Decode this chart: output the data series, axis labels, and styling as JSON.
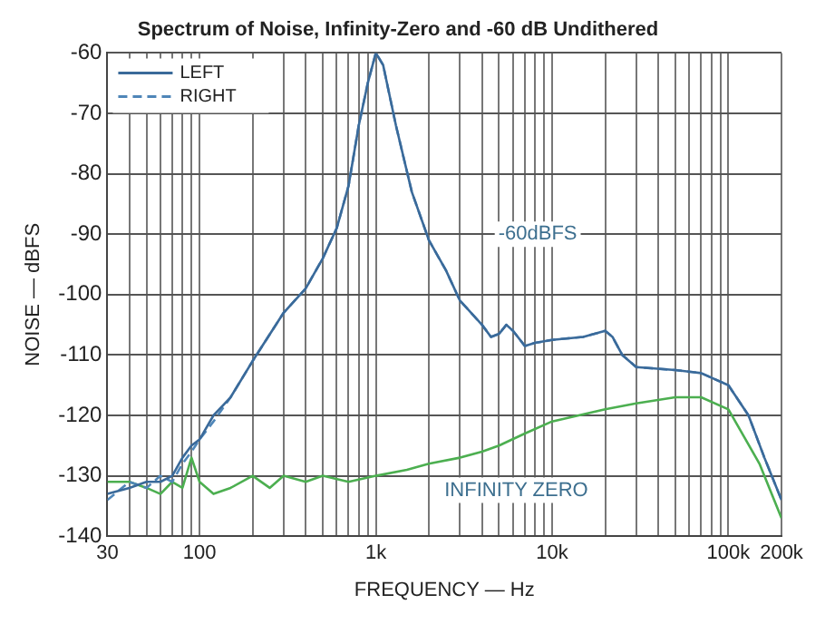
{
  "chart_data": {
    "type": "line",
    "title": "Spectrum of Noise, Infinity-Zero and -60 dB Undithered",
    "xlabel": "FREQUENCY — Hz",
    "ylabel": "NOISE — dBFS",
    "x": [
      30,
      40,
      50,
      60,
      70,
      80,
      90,
      100,
      120,
      150,
      200,
      300,
      400,
      500,
      600,
      700,
      800,
      900,
      1000,
      1100,
      1300,
      1600,
      2000,
      2500,
      3000,
      4000,
      4500,
      5000,
      5500,
      6000,
      7000,
      8000,
      10000,
      15000,
      20000,
      22000,
      25000,
      30000,
      50000,
      70000,
      100000,
      130000,
      160000,
      200000
    ],
    "series": [
      {
        "name": "LEFT",
        "color": "#3a6a9a",
        "line_style": "solid",
        "values": [
          -133,
          -132,
          -131,
          -131,
          -130,
          -127,
          -125,
          -124,
          -120,
          -117,
          -111,
          -103,
          -99,
          -94,
          -89,
          -82,
          -72,
          -65,
          -60,
          -62,
          -72,
          -83,
          -91,
          -96,
          -101,
          -105,
          -107,
          -106.5,
          -105,
          -106,
          -108.5,
          -108,
          -107.5,
          -107,
          -106,
          -107,
          -110,
          -112,
          -112.5,
          -113,
          -115,
          -120,
          -127,
          -134
        ]
      },
      {
        "name": "RIGHT",
        "color": "#4f86b8",
        "line_style": "dashed",
        "values": [
          -134,
          -131,
          -132,
          -130,
          -131,
          -128,
          -126,
          -124,
          -121,
          -117,
          -111,
          -103,
          -99,
          -94,
          -89,
          -82,
          -72,
          -65,
          -60,
          -62,
          -72,
          -83,
          -91,
          -96,
          -101,
          -105,
          -107,
          -106.5,
          -105,
          -106,
          -108.5,
          -108,
          -107.5,
          -107,
          -106,
          -107,
          -110,
          -112,
          -112.5,
          -113,
          -115,
          -120,
          -127,
          -134
        ]
      },
      {
        "color": "#4caf50",
        "line_style": "solid",
        "x": [
          30,
          40,
          50,
          60,
          70,
          80,
          90,
          100,
          120,
          150,
          200,
          250,
          300,
          400,
          500,
          700,
          1000,
          1500,
          2000,
          3000,
          4000,
          5000,
          7000,
          10000,
          20000,
          30000,
          50000,
          70000,
          100000,
          150000,
          200000
        ],
        "values": [
          -131,
          -131,
          -132,
          -133,
          -131,
          -132,
          -127,
          -131,
          -133,
          -132,
          -130,
          -132,
          -130,
          -131,
          -130,
          -131,
          -130,
          -129,
          -128,
          -127,
          -126,
          -125,
          -123,
          -121,
          -119,
          -118,
          -117,
          -117,
          -119,
          -128,
          -137
        ]
      }
    ],
    "annotations": [
      "-60dBFS",
      "INFINITY ZERO"
    ],
    "log": "x",
    "xlim": [
      30,
      200000
    ],
    "xticks": [
      30,
      {
        "value": 40,
        "label": null
      },
      {
        "value": 50,
        "label": null
      },
      {
        "value": 60,
        "label": null
      },
      {
        "value": 70,
        "label": null
      },
      {
        "value": 80,
        "label": null
      },
      {
        "value": 90,
        "label": null
      },
      100,
      {
        "value": 200,
        "label": null
      },
      {
        "value": 300,
        "label": null
      },
      {
        "value": 400,
        "label": null
      },
      {
        "value": 500,
        "label": null
      },
      {
        "value": 600,
        "label": null
      },
      {
        "value": 700,
        "label": null
      },
      {
        "value": 800,
        "label": null
      },
      {
        "value": 900,
        "label": null
      },
      {
        "value": 1000,
        "label": "1k"
      },
      {
        "value": 2000,
        "label": null
      },
      {
        "value": 3000,
        "label": null
      },
      {
        "value": 4000,
        "label": null
      },
      {
        "value": 5000,
        "label": null
      },
      {
        "value": 6000,
        "label": null
      },
      {
        "value": 7000,
        "label": null
      },
      {
        "value": 8000,
        "label": null
      },
      {
        "value": 9000,
        "label": null
      },
      {
        "value": 10000,
        "label": "10k"
      },
      {
        "value": 20000,
        "label": null
      },
      {
        "value": 30000,
        "label": null
      },
      {
        "value": 40000,
        "label": null
      },
      {
        "value": 50000,
        "label": null
      },
      {
        "value": 60000,
        "label": null
      },
      {
        "value": 70000,
        "label": null
      },
      {
        "value": 80000,
        "label": null
      },
      {
        "value": 90000,
        "label": null
      },
      {
        "value": 100000,
        "label": "100k"
      },
      {
        "value": 200000,
        "label": "200k"
      }
    ],
    "ylim": [
      -140,
      -60
    ],
    "yticks": [
      -140,
      -130,
      -120,
      -110,
      -100,
      -90,
      -80,
      -70,
      -60
    ],
    "grid": true,
    "legend": "top left",
    "marker": "none"
  }
}
